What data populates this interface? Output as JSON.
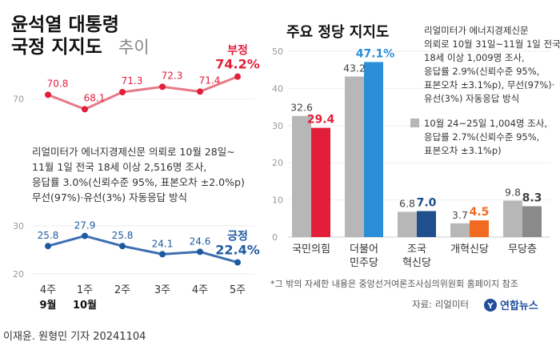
{
  "colors": {
    "red": "#e31e3a",
    "red_line": "#e87a87",
    "blue_label": "#1e5aa0",
    "blue_line": "#3e6fb0",
    "bar_grey": "#b7b7b7",
    "bar_grey_dark": "#8a8a8a",
    "bar_blue": "#2a8fd8",
    "bar_navy": "#1f4f8c",
    "bar_orange": "#f26a21",
    "axis_text": "#999999",
    "grid": "#eeeeee"
  },
  "left_chart": {
    "title_line1": "윤석열 대통령",
    "title_line2_bold": "국정 지지도",
    "title_line2_light": "추이",
    "note_lines": [
      "리얼미터가 에너지경제신문 의뢰로 10월 28일~",
      "11월 1일 전국 18세 이상 2,516명 조사,",
      "응답률 3.0%(신뢰수준 95%, 표본오차 ±2.0%p)",
      "무선(97%)·유선(3%) 자동응답 방식"
    ]
  },
  "right_chart": {
    "title": "주요 정당 지지도",
    "note_current_lines": [
      "리얼미터가 에너지경제신문",
      "의뢰로 10월 31일~11월 1일 전국",
      "18세 이상 1,009명 조사,",
      "응답률 2.9%(신뢰수준 95%,",
      "표본오차 ±3.1%p), 무선(97%)·",
      "유선(3%) 자동응답 방식"
    ],
    "note_previous_lines": [
      "10월 24~25일 1,004명 조사,",
      "응답률 2.7%(신뢰수준 95%,",
      "표본오차 ±3.1%p)"
    ]
  },
  "footer": {
    "source_note": "*그 밖의 자세한 내용은 중앙선거여론조사심의위원회 홈페이지 참조",
    "source": "자료: 리얼미터",
    "brand": "연합뉴스",
    "credit": "이재윤. 원형민 기자 20241104"
  },
  "chart_data": [
    {
      "type": "line",
      "title": "윤석열 대통령 국정 지지도 추이",
      "x": [
        "4주",
        "1주",
        "2주",
        "3주",
        "4주",
        "5주"
      ],
      "x_month_labels": [
        "9월",
        "10월",
        "",
        "",
        "",
        ""
      ],
      "series": [
        {
          "name": "부정",
          "values": [
            70.8,
            68.1,
            71.3,
            72.3,
            71.4,
            74.2
          ],
          "last_label": "74.2%"
        },
        {
          "name": "긍정",
          "values": [
            25.8,
            27.9,
            25.8,
            24.1,
            24.6,
            22.4
          ],
          "last_label": "22.4%"
        }
      ],
      "upper_panel": {
        "ylim": [
          65,
          77
        ],
        "yticks": [
          70
        ]
      },
      "lower_panel": {
        "ylim": [
          18,
          32
        ],
        "yticks": [
          20,
          30
        ]
      }
    },
    {
      "type": "bar",
      "title": "주요 정당 지지도",
      "categories": [
        "국민의힘",
        "더불어\n민주당",
        "조국\n혁신당",
        "개혁신당",
        "무당층"
      ],
      "series": [
        {
          "name": "10월 24~25일",
          "values": [
            32.6,
            43.2,
            6.8,
            3.7,
            9.8
          ]
        },
        {
          "name": "10월 31일~11월 1일",
          "values": [
            29.4,
            47.1,
            7.0,
            4.5,
            8.3
          ]
        }
      ],
      "value_labels_current": [
        "29.4",
        "47.1%",
        "7.0",
        "4.5",
        "8.3"
      ],
      "ylim": [
        0,
        50
      ],
      "yticks": [
        0,
        10,
        20,
        30,
        40,
        50
      ],
      "legend": "10월 24~25일 1,004명 조사"
    }
  ]
}
